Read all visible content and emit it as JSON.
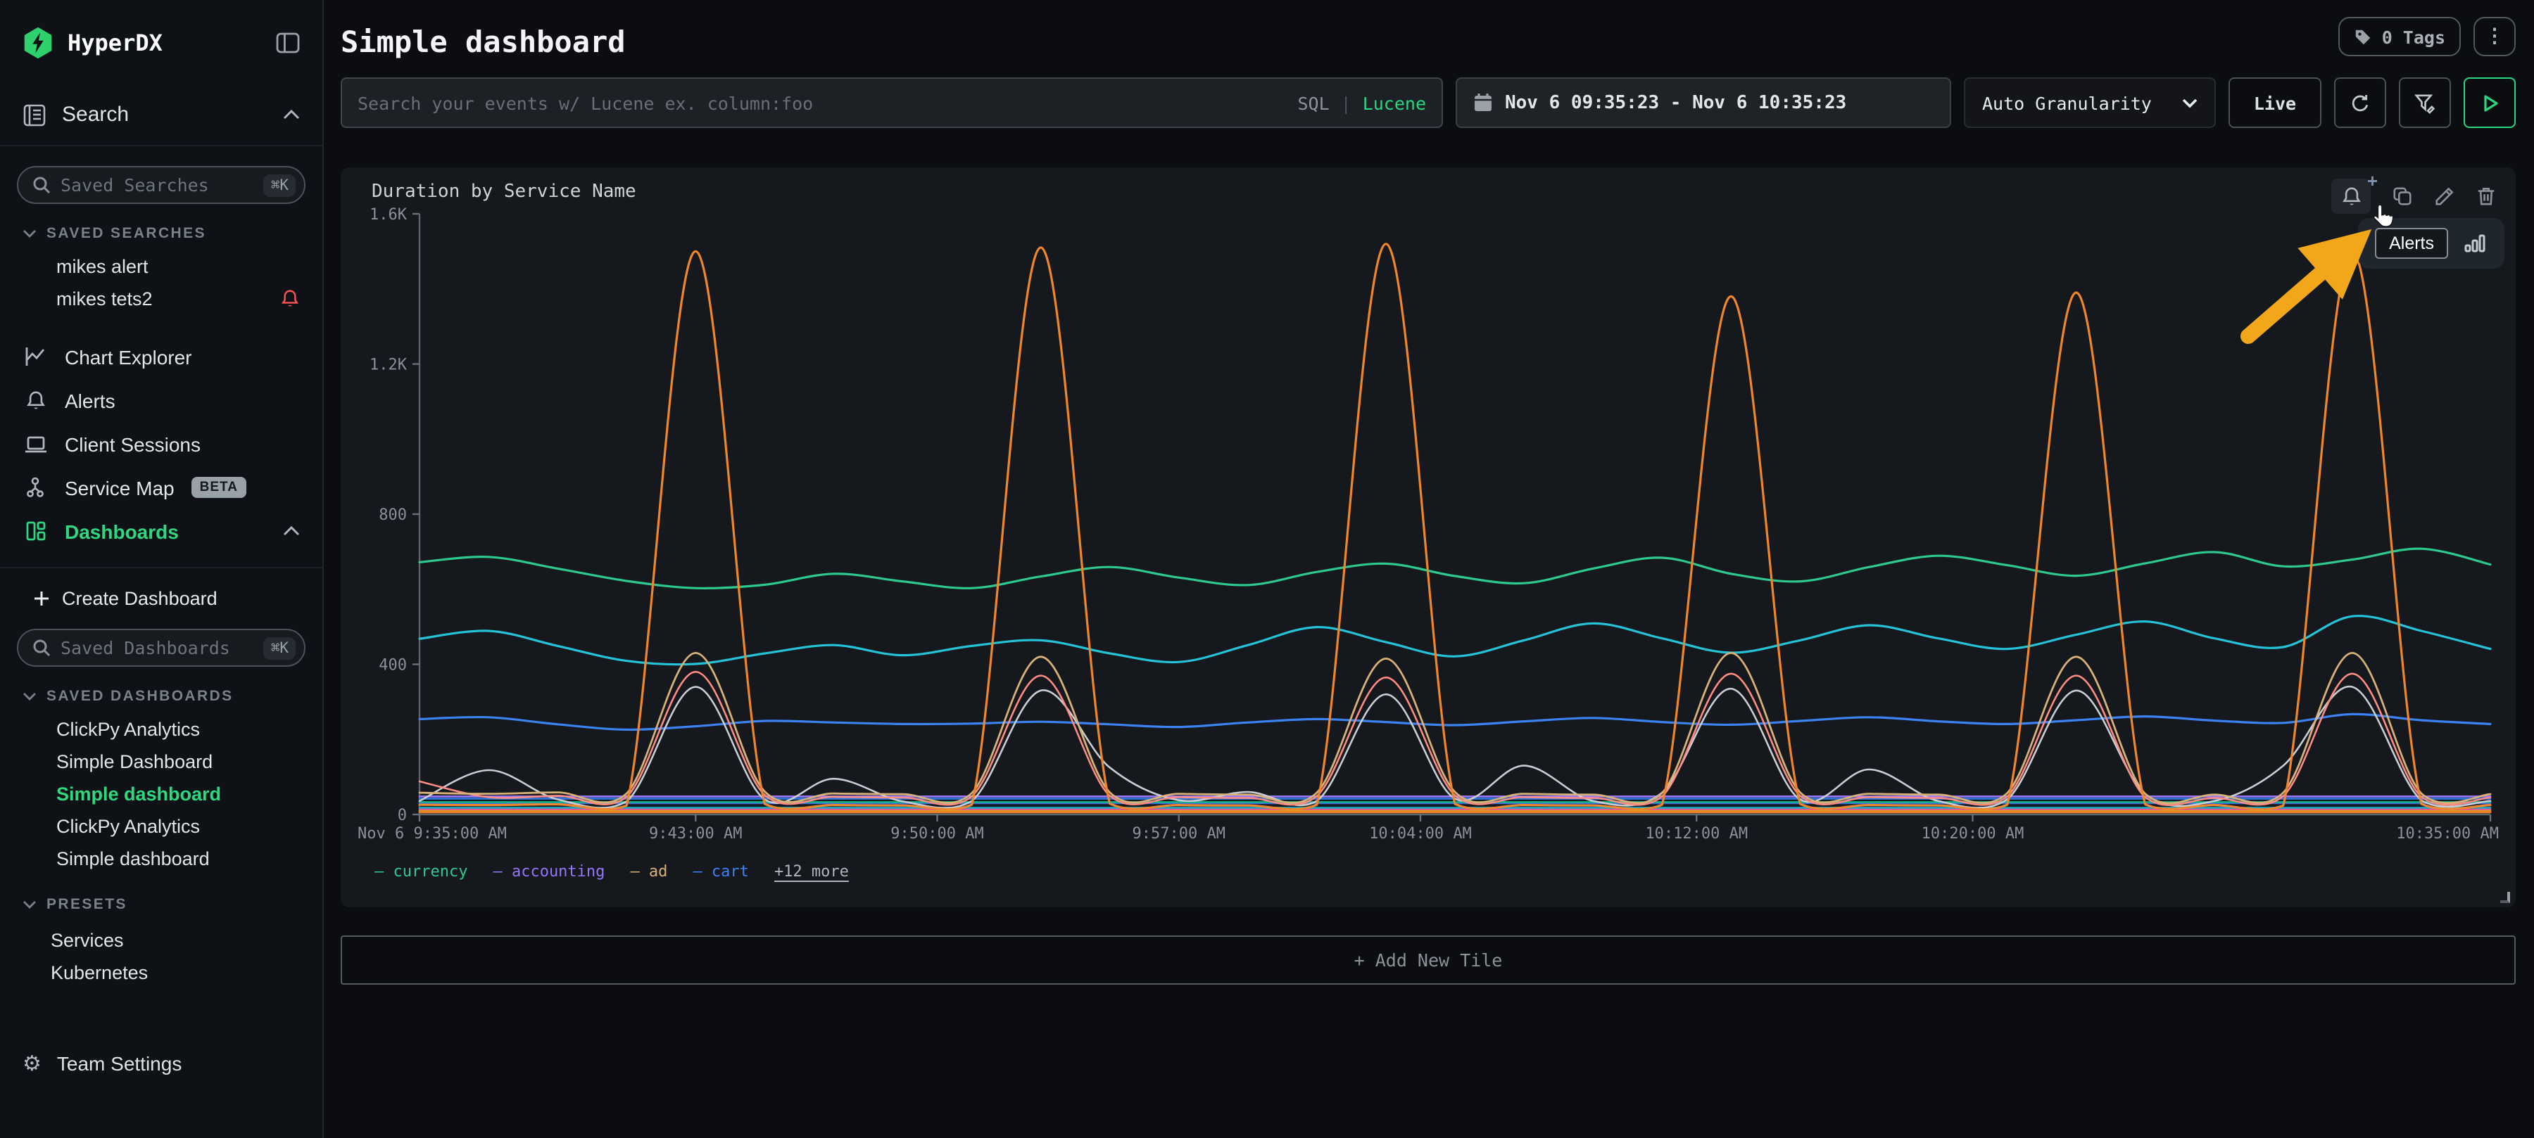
{
  "app": {
    "brand": "HyperDX"
  },
  "header": {
    "title": "Simple dashboard",
    "tags_button": "0 Tags"
  },
  "toolbar": {
    "search_placeholder": "Search your events w/ Lucene ex. column:foo",
    "lang_sql": "SQL",
    "lang_divider": "|",
    "lang_lucene": "Lucene",
    "date_range": "Nov 6 09:35:23 - Nov 6 10:35:23",
    "granularity": "Auto Granularity",
    "live": "Live"
  },
  "sidebar": {
    "search_section": "Search",
    "saved_searches": {
      "placeholder": "Saved Searches",
      "shortcut": "⌘K",
      "header": "SAVED SEARCHES",
      "items": [
        {
          "label": "mikes alert"
        },
        {
          "label": "mikes tets2"
        }
      ]
    },
    "nav": [
      {
        "label": "Chart Explorer"
      },
      {
        "label": "Alerts"
      },
      {
        "label": "Client Sessions"
      },
      {
        "label": "Service Map",
        "badge": "BETA"
      },
      {
        "label": "Dashboards"
      }
    ],
    "create_dashboard": "Create Dashboard",
    "saved_dashboards": {
      "placeholder": "Saved Dashboards",
      "shortcut": "⌘K",
      "header": "SAVED DASHBOARDS",
      "items": [
        "ClickPy Analytics",
        "Simple Dashboard",
        "Simple dashboard",
        "ClickPy Analytics",
        "Simple dashboard"
      ],
      "active_index": 2
    },
    "presets": {
      "header": "PRESETS",
      "items": [
        "Services",
        "Kubernetes"
      ]
    },
    "team_settings": "Team Settings"
  },
  "tile": {
    "title": "Duration by Service Name",
    "popover": {
      "label": "Alerts"
    },
    "add_new_tile": "+ Add New Tile"
  },
  "colors": {
    "accent_green": "#2fd77f",
    "alert_red": "#fa5252",
    "arrow_yellow": "#f2a71b"
  },
  "chart_data": {
    "type": "line",
    "title": "Duration by Service Name",
    "ylim": [
      0,
      1600
    ],
    "x_span_minutes": 60,
    "grid": false,
    "legend_position": "bottom",
    "y_ticks": [
      {
        "v": 1600,
        "label": "1.6K"
      },
      {
        "v": 1200,
        "label": "1.2K"
      },
      {
        "v": 800,
        "label": "800"
      },
      {
        "v": 400,
        "label": "400"
      },
      {
        "v": 0,
        "label": "0"
      }
    ],
    "x_ticks": [
      {
        "m": 0,
        "label": "Nov 6 9:35:00 AM",
        "anchor": "start"
      },
      {
        "m": 8,
        "label": "9:43:00 AM"
      },
      {
        "m": 15,
        "label": "9:50:00 AM"
      },
      {
        "m": 22,
        "label": "9:57:00 AM"
      },
      {
        "m": 29,
        "label": "10:04:00 AM"
      },
      {
        "m": 37,
        "label": "10:12:00 AM"
      },
      {
        "m": 45,
        "label": "10:20:00 AM"
      },
      {
        "m": 60,
        "label": "10:35:00 AM",
        "anchor": "end"
      }
    ],
    "legend": {
      "visible": [
        {
          "name": "currency",
          "color": "#2dc98f"
        },
        {
          "name": "accounting",
          "color": "#9775fa"
        },
        {
          "name": "ad",
          "color": "#d8b178"
        },
        {
          "name": "cart",
          "color": "#3b82f2"
        }
      ],
      "more": "+12 more"
    },
    "series": [
      {
        "name": "",
        "color": "#d4a514",
        "w": 1.3,
        "values": [
          10,
          10
        ]
      },
      {
        "name": "",
        "color": "#ef7d28",
        "w": 1.5,
        "values": [
          6,
          6
        ]
      },
      {
        "name": "",
        "color": "#e2569b",
        "w": 1.3,
        "values": [
          14,
          14
        ]
      },
      {
        "name": "",
        "color": "#15aabf",
        "w": 1.3,
        "values": [
          18,
          18
        ]
      },
      {
        "name": "",
        "color": "#3f6ae0",
        "w": 1.3,
        "values": [
          30,
          30
        ]
      },
      {
        "name": "",
        "color": "#12b886",
        "w": 1.3,
        "values": [
          33,
          33
        ]
      },
      {
        "name": "",
        "color": "#2d7be5",
        "w": 1.3,
        "values": [
          42,
          42
        ]
      },
      {
        "name": "accounting",
        "color": "#9775fa",
        "w": 1.4,
        "values": [
          48,
          48
        ]
      },
      {
        "name": "cart",
        "color": "#3b82f2",
        "w": 1.6,
        "values": [
          254,
          259,
          240,
          226,
          235,
          249,
          245,
          241,
          242,
          247,
          240,
          233,
          245,
          254,
          246,
          238,
          248,
          257,
          246,
          239,
          249,
          259,
          248,
          241,
          251,
          261,
          250,
          244,
          267,
          251,
          241
        ]
      },
      {
        "name": "",
        "color": "#25c3d8",
        "w": 1.6,
        "values": [
          468,
          489,
          449,
          409,
          401,
          429,
          451,
          424,
          449,
          464,
          429,
          406,
          451,
          499,
          459,
          421,
          464,
          509,
          469,
          431,
          464,
          504,
          469,
          441,
          479,
          514,
          469,
          446,
          528,
          489,
          441
        ]
      },
      {
        "name": "currency",
        "color": "#2dc98f",
        "w": 1.6,
        "values": [
          672,
          686,
          655,
          622,
          603,
          612,
          641,
          621,
          603,
          634,
          659,
          631,
          611,
          646,
          668,
          635,
          616,
          655,
          684,
          641,
          621,
          659,
          689,
          664,
          636,
          669,
          699,
          661,
          679,
          708,
          666
        ]
      },
      {
        "name": "",
        "color": "#c9ced4",
        "w": 1.3,
        "values": [
          36,
          118,
          40,
          35,
          340,
          40,
          95,
          35,
          36,
          330,
          125,
          38,
          60,
          36,
          320,
          42,
          130,
          36,
          58,
          335,
          40,
          120,
          36,
          40,
          330,
          55,
          36,
          130,
          340,
          38,
          36
        ]
      },
      {
        "name": "",
        "color": "#ff8c82",
        "w": 1.3,
        "values": [
          88,
          46,
          50,
          47,
          380,
          52,
          47,
          45,
          48,
          370,
          50,
          46,
          44,
          49,
          365,
          51,
          46,
          44,
          48,
          375,
          50,
          46,
          44,
          48,
          370,
          46,
          44,
          49,
          375,
          47,
          45
        ]
      },
      {
        "name": "ad",
        "color": "#d8b178",
        "w": 1.4,
        "values": [
          58,
          55,
          59,
          56,
          430,
          61,
          56,
          54,
          57,
          420,
          59,
          55,
          53,
          58,
          415,
          60,
          55,
          53,
          57,
          430,
          59,
          55,
          53,
          57,
          420,
          55,
          53,
          58,
          430,
          56,
          54
        ]
      },
      {
        "name": "",
        "color": "#f0862b",
        "w": 1.6,
        "values": [
          26,
          25,
          27,
          24,
          1500,
          28,
          25,
          24,
          26,
          1510,
          29,
          25,
          24,
          26,
          1520,
          28,
          25,
          24,
          26,
          1380,
          28,
          25,
          24,
          26,
          1390,
          27,
          25,
          24,
          1500,
          28,
          25
        ]
      }
    ]
  }
}
